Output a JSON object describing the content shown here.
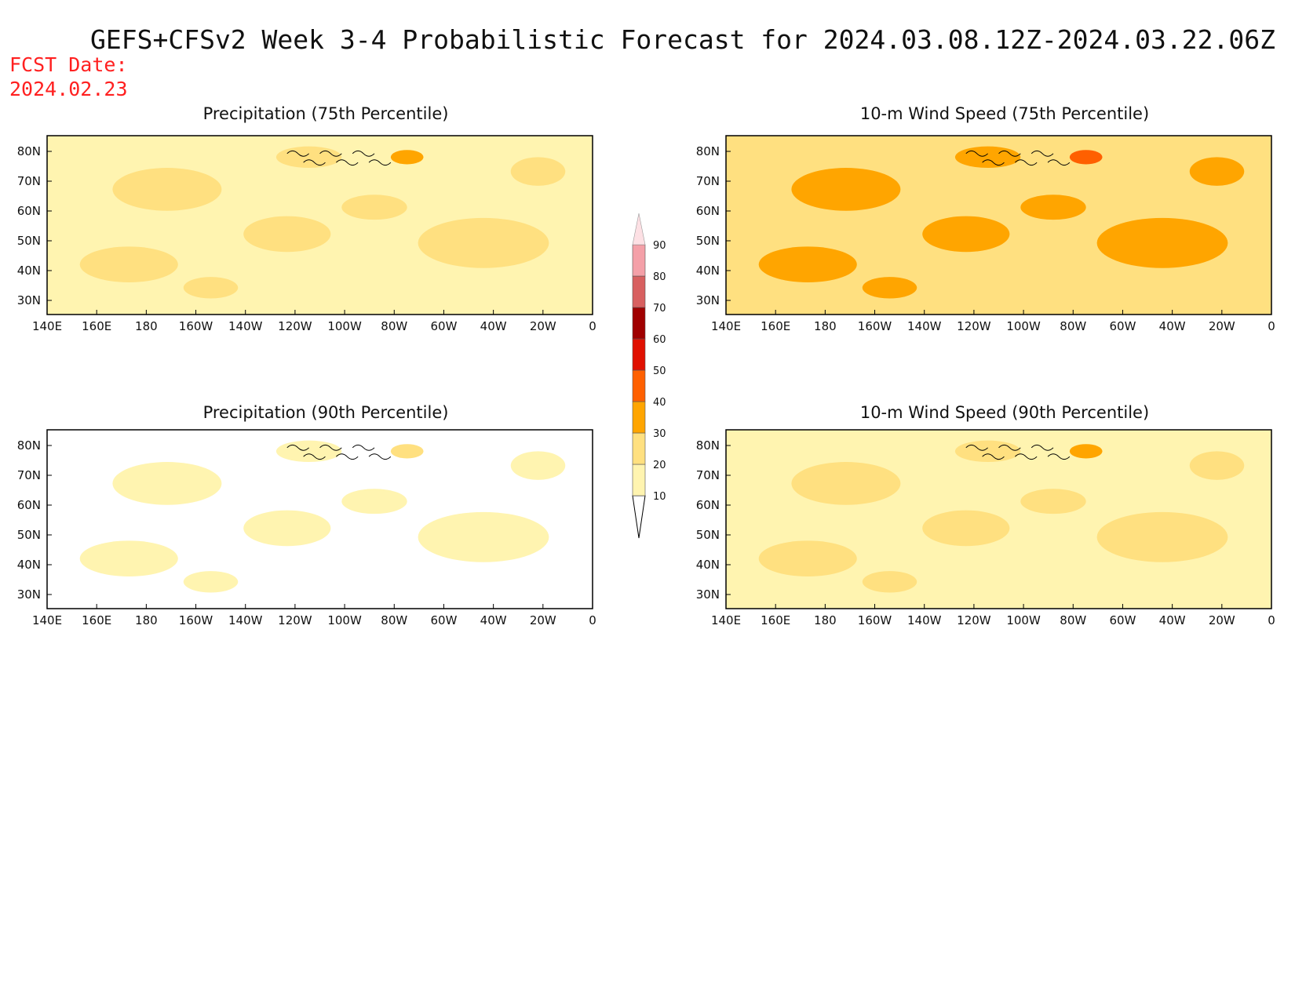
{
  "title": "GEFS+CFSv2 Week 3-4 Probabilistic Forecast for 2024.03.08.12Z-2024.03.22.06Z",
  "fcst_label": "FCST Date:",
  "fcst_date": "2024.02.23",
  "panels": [
    {
      "id": "p75",
      "title": "Precipitation (75th Percentile)",
      "dominant_level": 1,
      "secondary_level": 2
    },
    {
      "id": "w75",
      "title": "10-m Wind Speed (75th Percentile)",
      "dominant_level": 2,
      "secondary_level": 3
    },
    {
      "id": "p90",
      "title": "Precipitation (90th Percentile)",
      "dominant_level": 0,
      "secondary_level": 1
    },
    {
      "id": "w90",
      "title": "10-m Wind Speed (90th Percentile)",
      "dominant_level": 1,
      "secondary_level": 2
    }
  ],
  "lat_ticks": [
    "80N",
    "70N",
    "60N",
    "50N",
    "40N",
    "30N"
  ],
  "lon_ticks": [
    "140E",
    "160E",
    "180",
    "160W",
    "140W",
    "120W",
    "100W",
    "80W",
    "60W",
    "40W",
    "20W",
    "0"
  ],
  "colorbar": {
    "levels": [
      "10",
      "20",
      "30",
      "40",
      "50",
      "60",
      "70",
      "80",
      "90"
    ],
    "colors": [
      "#ffffff",
      "#fff4b0",
      "#ffe080",
      "#ffa500",
      "#ff6000",
      "#e01000",
      "#a00000",
      "#d86060",
      "#f4a0a8",
      "#fde0e4"
    ]
  }
}
